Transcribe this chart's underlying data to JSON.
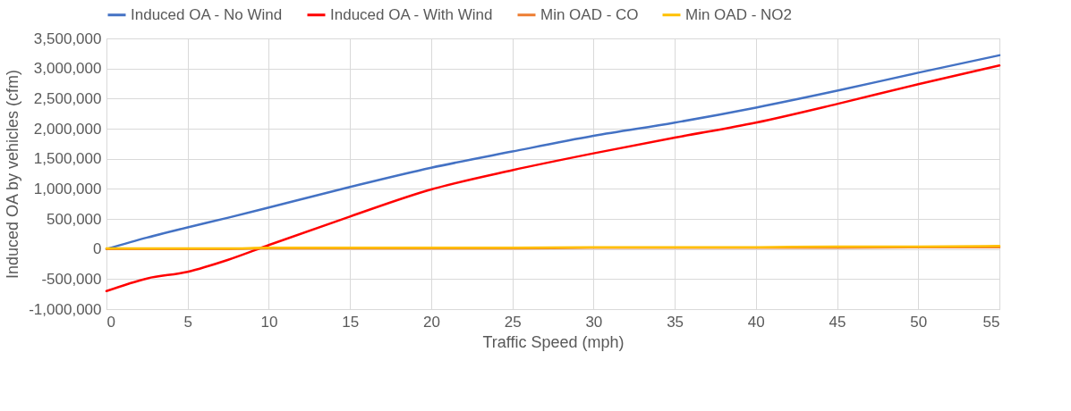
{
  "chart_data": {
    "type": "line",
    "xlabel": "Traffic Speed (mph)",
    "ylabel": "Induced OA by vehicles (cfm)",
    "x": [
      0,
      2.5,
      5,
      7.5,
      10,
      15,
      20,
      25,
      30,
      35,
      40,
      45,
      50,
      55
    ],
    "series": [
      {
        "name": "Induced OA - No Wind",
        "color": "#4472c4",
        "values": [
          0,
          190000,
          360000,
          520000,
          690000,
          1030000,
          1350000,
          1620000,
          1880000,
          2100000,
          2350000,
          2630000,
          2930000,
          3220000
        ]
      },
      {
        "name": "Induced OA - With Wind",
        "color": "#ff0000",
        "values": [
          -700000,
          -490000,
          -380000,
          -180000,
          65000,
          540000,
          990000,
          1310000,
          1590000,
          1850000,
          2100000,
          2410000,
          2740000,
          3050000
        ]
      },
      {
        "name": "Min OAD - CO",
        "color": "#ed7d31",
        "values": [
          0,
          0,
          0,
          0,
          10000,
          10000,
          10000,
          10000,
          20000,
          20000,
          20000,
          20000,
          30000,
          30000
        ]
      },
      {
        "name": "Min OAD - NO2",
        "color": "#ffc000",
        "values": [
          10000,
          10000,
          10000,
          10000,
          20000,
          20000,
          20000,
          20000,
          30000,
          30000,
          30000,
          40000,
          40000,
          50000
        ]
      }
    ],
    "xlim": [
      0,
      55
    ],
    "xticks": [
      0,
      5,
      10,
      15,
      20,
      25,
      30,
      35,
      40,
      45,
      50,
      55
    ],
    "ylim": [
      -1000000,
      3500000
    ],
    "yticks": [
      {
        "value": -1000000,
        "label": "-1,000,000"
      },
      {
        "value": -500000,
        "label": "-500,000"
      },
      0,
      {
        "value": 500000,
        "label": "500,000"
      },
      {
        "value": 1000000,
        "label": "1,000,000"
      },
      {
        "value": 1500000,
        "label": "1,500,000"
      },
      {
        "value": 2000000,
        "label": "2,000,000"
      },
      {
        "value": 2500000,
        "label": "2,500,000"
      },
      {
        "value": 3000000,
        "label": "3,000,000"
      },
      {
        "value": 3500000,
        "label": "3,500,000"
      }
    ],
    "grid": true,
    "legend": "top",
    "line_style": "solid"
  }
}
